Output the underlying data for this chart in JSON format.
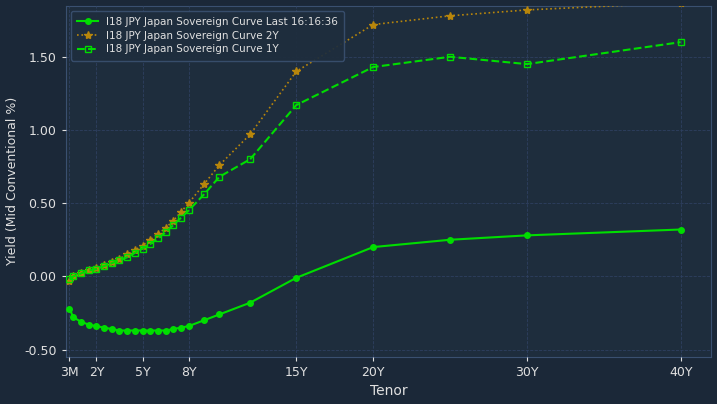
{
  "background_color": "#1b2838",
  "plot_bg_color": "#1e2d3d",
  "grid_color": "#2e4060",
  "text_color": "#e0e0e0",
  "xlabel": "Tenor",
  "ylabel": "Yield (Mid Conventional %)",
  "ylim": [
    -0.55,
    1.85
  ],
  "xtick_labels": [
    "3M",
    "2Y",
    "5Y",
    "8Y",
    "15Y",
    "20Y",
    "30Y",
    "40Y"
  ],
  "xtick_values": [
    0.25,
    2,
    5,
    8,
    15,
    20,
    30,
    40
  ],
  "ytick_values": [
    -0.5,
    0.0,
    0.5,
    1.0,
    1.5
  ],
  "xlim": [
    0.0,
    42
  ],
  "series_last": {
    "label": "I18 JPY Japan Sovereign Curve Last 16:16:36",
    "color": "#00dd00",
    "linestyle": "-",
    "marker": "o",
    "markersize": 4,
    "linewidth": 1.5,
    "x": [
      0.25,
      0.5,
      1,
      1.5,
      2,
      2.5,
      3,
      3.5,
      4,
      4.5,
      5,
      5.5,
      6,
      6.5,
      7,
      7.5,
      8,
      9,
      10,
      12,
      15,
      20,
      25,
      30,
      40
    ],
    "y": [
      -0.22,
      -0.28,
      -0.31,
      -0.33,
      -0.34,
      -0.35,
      -0.36,
      -0.37,
      -0.37,
      -0.37,
      -0.37,
      -0.37,
      -0.37,
      -0.37,
      -0.36,
      -0.35,
      -0.34,
      -0.3,
      -0.26,
      -0.18,
      -0.01,
      0.2,
      0.25,
      0.28,
      0.32
    ]
  },
  "series_2y": {
    "label": "I18 JPY Japan Sovereign Curve 2Y",
    "color": "#b8860b",
    "linestyle": ":",
    "marker": "*",
    "markersize": 6,
    "linewidth": 1.2,
    "x": [
      0.25,
      0.5,
      1,
      1.5,
      2,
      2.5,
      3,
      3.5,
      4,
      4.5,
      5,
      5.5,
      6,
      6.5,
      7,
      7.5,
      8,
      9,
      10,
      12,
      15,
      20,
      25,
      30,
      40
    ],
    "y": [
      -0.03,
      0.0,
      0.02,
      0.04,
      0.06,
      0.08,
      0.1,
      0.12,
      0.15,
      0.18,
      0.21,
      0.25,
      0.29,
      0.33,
      0.38,
      0.44,
      0.5,
      0.63,
      0.76,
      0.97,
      1.4,
      1.72,
      1.78,
      1.82,
      1.87
    ]
  },
  "series_1y": {
    "label": "I18 JPY Japan Sovereign Curve 1Y",
    "color": "#00dd00",
    "linestyle": "--",
    "marker": "s",
    "markersize": 4,
    "linewidth": 1.5,
    "markerfacecolor": "none",
    "markeredgecolor": "#00dd00",
    "x": [
      0.25,
      0.5,
      1,
      1.5,
      2,
      2.5,
      3,
      3.5,
      4,
      4.5,
      5,
      5.5,
      6,
      6.5,
      7,
      7.5,
      8,
      9,
      10,
      12,
      15,
      20,
      25,
      30,
      40
    ],
    "y": [
      -0.02,
      0.0,
      0.02,
      0.04,
      0.05,
      0.07,
      0.09,
      0.11,
      0.13,
      0.16,
      0.19,
      0.22,
      0.26,
      0.3,
      0.35,
      0.4,
      0.45,
      0.56,
      0.68,
      0.8,
      1.17,
      1.43,
      1.5,
      1.45,
      1.6
    ]
  }
}
